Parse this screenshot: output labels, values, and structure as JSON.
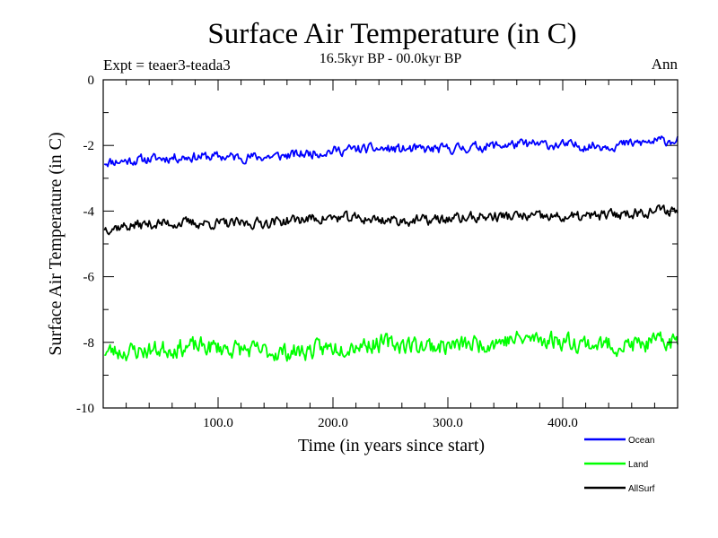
{
  "chart_data": {
    "type": "line",
    "title": "Surface Air Temperature (in C)",
    "subtitle": "16.5kyr BP - 00.0kyr BP",
    "left_note": "Expt = teaer3-teada3",
    "right_note": "Ann",
    "xlabel": "Time (in years since start)",
    "ylabel": "Surface Air Temperature (in C)",
    "xlim": [
      0,
      500
    ],
    "ylim": [
      -10,
      0
    ],
    "x_ticks": [
      100,
      200,
      300,
      400
    ],
    "x_tick_labels": [
      "100.0",
      "200.0",
      "300.0",
      "400.0"
    ],
    "y_ticks": [
      0,
      -2,
      -4,
      -6,
      -8,
      -10
    ],
    "y_tick_labels": [
      "0",
      "-2",
      "-4",
      "-6",
      "-8",
      "-10"
    ],
    "legend_position": "bottom-right, below plot",
    "series_x": {
      "start": 1,
      "end": 500,
      "step": 1
    },
    "series": [
      {
        "name": "Ocean",
        "color": "#0000ff",
        "trend": {
          "start": -2.45,
          "end": -1.85
        },
        "noise": 0.13,
        "seed": 11,
        "sample_values": [
          -2.6,
          -2.35,
          -2.25,
          -2.3,
          -2.2,
          -2.1,
          -2.0,
          -1.9,
          -1.85,
          -2.35
        ]
      },
      {
        "name": "Land",
        "color": "#00ff00",
        "trend": {
          "start": -8.25,
          "end": -7.95
        },
        "noise": 0.24,
        "seed": 23,
        "sample_values": [
          -8.5,
          -8.1,
          -8.3,
          -8.35,
          -8.2,
          -8.1,
          -8.05,
          -8.0,
          -7.9,
          -8.4
        ]
      },
      {
        "name": "AllSurf",
        "color": "#000000",
        "trend": {
          "start": -4.45,
          "end": -4.05
        },
        "noise": 0.14,
        "seed": 37,
        "sample_values": [
          -4.6,
          -4.3,
          -4.4,
          -4.45,
          -4.35,
          -4.3,
          -4.2,
          -4.15,
          -4.0,
          -4.5
        ]
      }
    ]
  }
}
